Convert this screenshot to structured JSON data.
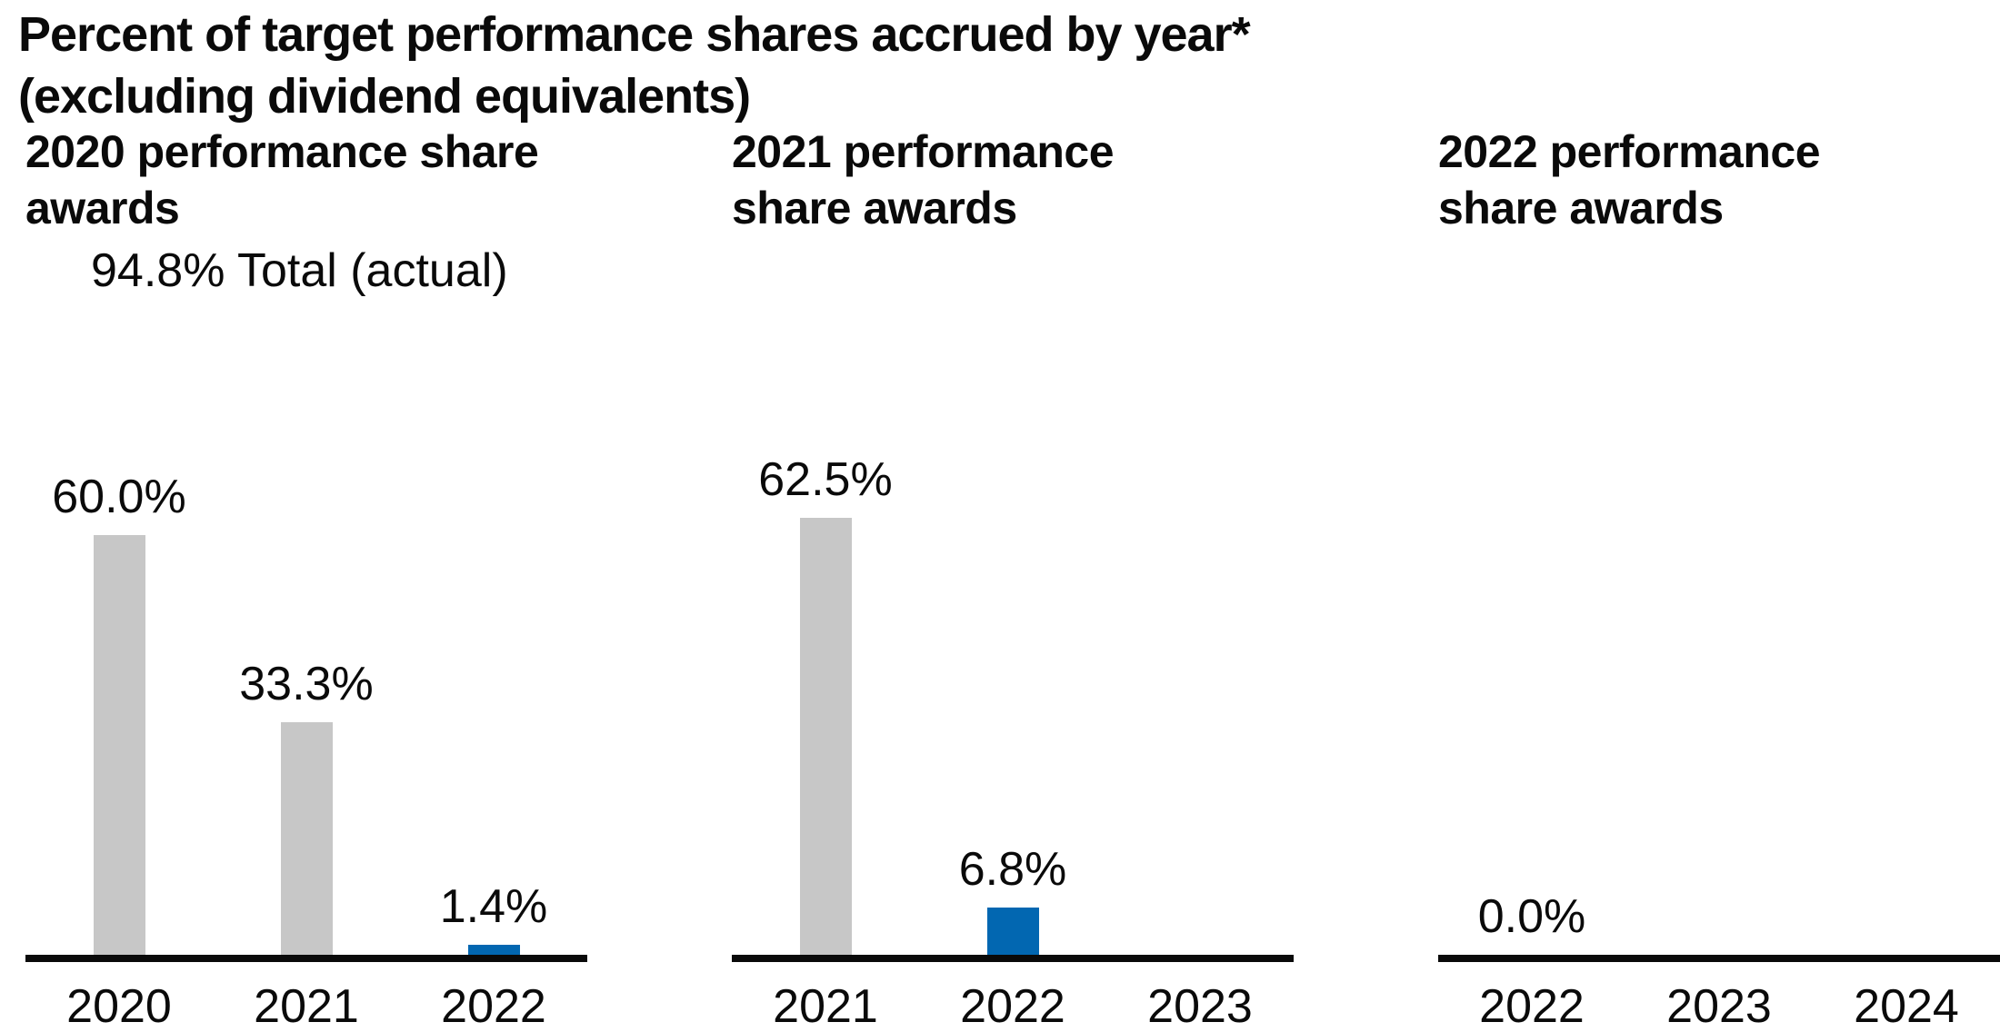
{
  "title": {
    "line1": "Percent of target performance shares accrued by year*",
    "line2": "(excluding dividend equivalents)"
  },
  "colors": {
    "bar_gray": "#c7c7c7",
    "bar_blue": "#0267b1",
    "axis_black": "#0a0a0a"
  },
  "chart_data": [
    {
      "type": "bar",
      "title_line1": "2020 performance share",
      "title_line2": "awards",
      "subtitle": "94.8% Total (actual)",
      "categories": [
        "2020",
        "2021",
        "2022"
      ],
      "values": [
        60.0,
        33.3,
        1.4
      ],
      "labels": [
        "60.0%",
        "33.3%",
        "1.4%"
      ],
      "bar_colors": [
        "gray",
        "gray",
        "blue"
      ],
      "ylim": [
        0,
        65
      ],
      "xlabel": "",
      "ylabel": "",
      "grid": false,
      "legend": "none"
    },
    {
      "type": "bar",
      "title_line1": "2021 performance",
      "title_line2": "share awards",
      "subtitle": "",
      "categories": [
        "2021",
        "2022",
        "2023"
      ],
      "values": [
        62.5,
        6.8,
        null
      ],
      "labels": [
        "62.5%",
        "6.8%",
        ""
      ],
      "bar_colors": [
        "gray",
        "blue",
        "none"
      ],
      "ylim": [
        0,
        65
      ],
      "xlabel": "",
      "ylabel": "",
      "grid": false,
      "legend": "none"
    },
    {
      "type": "bar",
      "title_line1": "2022 performance",
      "title_line2": "share awards",
      "subtitle": "",
      "categories": [
        "2022",
        "2023",
        "2024"
      ],
      "values": [
        0.0,
        null,
        null
      ],
      "labels": [
        "0.0%",
        "",
        ""
      ],
      "bar_colors": [
        "blue",
        "none",
        "none"
      ],
      "ylim": [
        0,
        65
      ],
      "xlabel": "",
      "ylabel": "",
      "grid": false,
      "legend": "none"
    }
  ]
}
